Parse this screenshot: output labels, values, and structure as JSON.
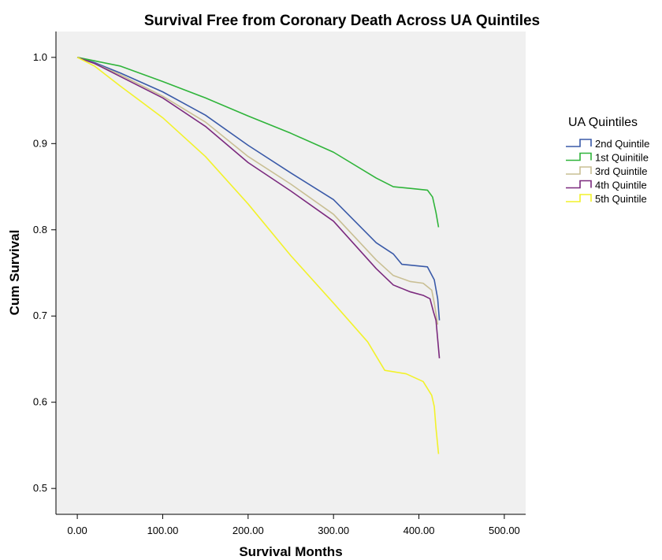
{
  "chart_data": {
    "type": "line",
    "title": "Survival Free from Coronary Death Across UA Quintiles",
    "xlabel": "Survival Months",
    "ylabel": "Cum Survival",
    "xlim": [
      -25,
      525
    ],
    "ylim": [
      0.47,
      1.03
    ],
    "xticks": [
      0,
      100,
      200,
      300,
      400,
      500
    ],
    "xtick_labels": [
      "0.00",
      "100.00",
      "200.00",
      "300.00",
      "400.00",
      "500.00"
    ],
    "yticks": [
      0.5,
      0.6,
      0.7,
      0.8,
      0.9,
      1.0
    ],
    "ytick_labels": [
      "0.5",
      "0.6",
      "0.7",
      "0.8",
      "0.9",
      "1.0"
    ],
    "grid": false,
    "legend": {
      "title": "UA Quintiles",
      "position": "right"
    },
    "series": [
      {
        "name": "2nd Quintile",
        "color": "#3a5aa8",
        "points": [
          [
            0,
            1.0
          ],
          [
            20,
            0.994
          ],
          [
            50,
            0.982
          ],
          [
            100,
            0.96
          ],
          [
            150,
            0.933
          ],
          [
            200,
            0.898
          ],
          [
            250,
            0.866
          ],
          [
            300,
            0.835
          ],
          [
            350,
            0.785
          ],
          [
            370,
            0.772
          ],
          [
            380,
            0.76
          ],
          [
            410,
            0.757
          ],
          [
            418,
            0.742
          ],
          [
            422,
            0.72
          ],
          [
            424,
            0.695
          ]
        ]
      },
      {
        "name": "1st Quinitile",
        "color": "#2fb43a",
        "points": [
          [
            0,
            1.0
          ],
          [
            20,
            0.996
          ],
          [
            50,
            0.99
          ],
          [
            100,
            0.972
          ],
          [
            150,
            0.953
          ],
          [
            200,
            0.932
          ],
          [
            250,
            0.912
          ],
          [
            300,
            0.89
          ],
          [
            350,
            0.86
          ],
          [
            370,
            0.85
          ],
          [
            390,
            0.848
          ],
          [
            410,
            0.846
          ],
          [
            416,
            0.838
          ],
          [
            420,
            0.82
          ],
          [
            423,
            0.803
          ]
        ]
      },
      {
        "name": "3rd Quintile",
        "color": "#c9bf94",
        "points": [
          [
            0,
            1.0
          ],
          [
            20,
            0.993
          ],
          [
            50,
            0.98
          ],
          [
            100,
            0.955
          ],
          [
            150,
            0.925
          ],
          [
            200,
            0.885
          ],
          [
            250,
            0.853
          ],
          [
            300,
            0.818
          ],
          [
            350,
            0.765
          ],
          [
            370,
            0.747
          ],
          [
            390,
            0.74
          ],
          [
            405,
            0.738
          ],
          [
            415,
            0.73
          ],
          [
            418,
            0.715
          ],
          [
            422,
            0.69
          ]
        ]
      },
      {
        "name": "4th Quintile",
        "color": "#7b2a7e",
        "points": [
          [
            0,
            1.0
          ],
          [
            20,
            0.993
          ],
          [
            50,
            0.978
          ],
          [
            100,
            0.953
          ],
          [
            150,
            0.92
          ],
          [
            200,
            0.878
          ],
          [
            250,
            0.845
          ],
          [
            300,
            0.81
          ],
          [
            350,
            0.755
          ],
          [
            370,
            0.736
          ],
          [
            390,
            0.728
          ],
          [
            405,
            0.724
          ],
          [
            413,
            0.72
          ],
          [
            417,
            0.705
          ],
          [
            420,
            0.695
          ],
          [
            424,
            0.651
          ]
        ]
      },
      {
        "name": "5th Quintile",
        "color": "#f2f22a",
        "points": [
          [
            0,
            1.0
          ],
          [
            20,
            0.99
          ],
          [
            50,
            0.967
          ],
          [
            100,
            0.93
          ],
          [
            150,
            0.885
          ],
          [
            200,
            0.83
          ],
          [
            250,
            0.77
          ],
          [
            300,
            0.715
          ],
          [
            340,
            0.67
          ],
          [
            360,
            0.637
          ],
          [
            385,
            0.633
          ],
          [
            405,
            0.624
          ],
          [
            415,
            0.608
          ],
          [
            418,
            0.595
          ],
          [
            420,
            0.57
          ],
          [
            423,
            0.54
          ]
        ]
      }
    ]
  }
}
